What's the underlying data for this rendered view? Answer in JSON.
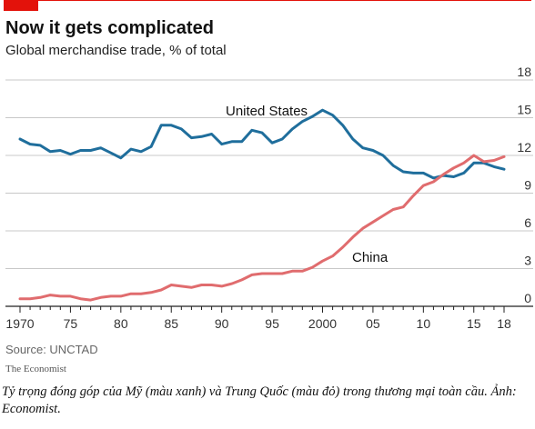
{
  "chart_data": {
    "type": "line",
    "title": "Now it gets complicated",
    "subtitle": "Global merchandise trade, % of total",
    "ylim": [
      0,
      18
    ],
    "yticks": [
      0,
      3,
      6,
      9,
      12,
      15,
      18
    ],
    "xlim": [
      1970,
      2018
    ],
    "xticks": [
      {
        "value": 1970,
        "label": "1970"
      },
      {
        "value": 1975,
        "label": "75"
      },
      {
        "value": 1980,
        "label": "80"
      },
      {
        "value": 1985,
        "label": "85"
      },
      {
        "value": 1990,
        "label": "90"
      },
      {
        "value": 1995,
        "label": "95"
      },
      {
        "value": 2000,
        "label": "2000"
      },
      {
        "value": 2005,
        "label": "05"
      },
      {
        "value": 2010,
        "label": "10"
      },
      {
        "value": 2015,
        "label": "15"
      },
      {
        "value": 2018,
        "label": "18"
      }
    ],
    "grid": true,
    "y_axis_position": "right",
    "x": [
      1970,
      1971,
      1972,
      1973,
      1974,
      1975,
      1976,
      1977,
      1978,
      1979,
      1980,
      1981,
      1982,
      1983,
      1984,
      1985,
      1986,
      1987,
      1988,
      1989,
      1990,
      1991,
      1992,
      1993,
      1994,
      1995,
      1996,
      1997,
      1998,
      1999,
      2000,
      2001,
      2002,
      2003,
      2004,
      2005,
      2006,
      2007,
      2008,
      2009,
      2010,
      2011,
      2012,
      2013,
      2014,
      2015,
      2016,
      2017,
      2018
    ],
    "series": [
      {
        "name": "United States",
        "color": "#1f6e9c",
        "values": [
          13.3,
          12.9,
          12.8,
          12.3,
          12.4,
          12.1,
          12.4,
          12.4,
          12.6,
          12.2,
          11.8,
          12.5,
          12.3,
          12.7,
          14.4,
          14.4,
          14.1,
          13.4,
          13.5,
          13.7,
          12.9,
          13.1,
          13.1,
          14.0,
          13.8,
          13.0,
          13.3,
          14.1,
          14.7,
          15.1,
          15.6,
          15.2,
          14.4,
          13.3,
          12.6,
          12.4,
          12.0,
          11.2,
          10.7,
          10.6,
          10.6,
          10.2,
          10.4,
          10.3,
          10.6,
          11.4,
          11.4,
          11.1,
          10.9
        ]
      },
      {
        "name": "China",
        "color": "#e06c6e",
        "values": [
          0.6,
          0.6,
          0.7,
          0.9,
          0.8,
          0.8,
          0.6,
          0.5,
          0.7,
          0.8,
          0.8,
          1.0,
          1.0,
          1.1,
          1.3,
          1.7,
          1.6,
          1.5,
          1.7,
          1.7,
          1.6,
          1.8,
          2.1,
          2.5,
          2.6,
          2.6,
          2.6,
          2.8,
          2.8,
          3.1,
          3.6,
          4.0,
          4.7,
          5.5,
          6.2,
          6.7,
          7.2,
          7.7,
          7.9,
          8.8,
          9.6,
          9.9,
          10.5,
          11.0,
          11.4,
          12.0,
          11.5,
          11.6,
          11.9
        ]
      }
    ],
    "annotations": [
      {
        "text": "United States",
        "series": "United States"
      },
      {
        "text": "China",
        "series": "China"
      }
    ]
  },
  "source": "Source: UNCTAD",
  "brand": "The Economist",
  "caption": "Tỷ trọng đóng góp của Mỹ (màu xanh) và Trung Quốc (màu đỏ) trong thương mại toàn cầu. Ảnh: Economist.",
  "colors": {
    "accent_red": "#e3120b",
    "grid": "#c8c8c8",
    "baseline": "#222222"
  }
}
